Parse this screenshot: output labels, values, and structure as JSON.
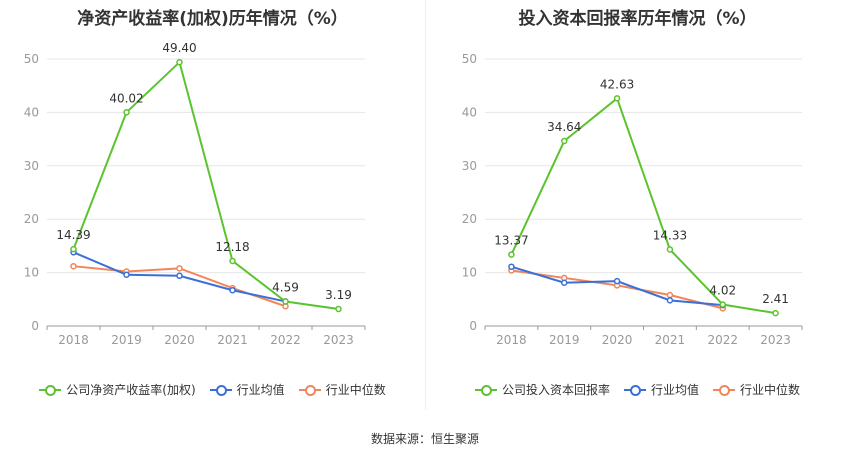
{
  "source_text": "数据来源：恒生聚源",
  "chart_data": [
    {
      "type": "line",
      "title": "净资产收益率(加权)历年情况（%）",
      "x": [
        "2018",
        "2019",
        "2020",
        "2021",
        "2022",
        "2023"
      ],
      "ylim": [
        0,
        50
      ],
      "yticks": [
        0,
        10,
        20,
        30,
        40,
        50
      ],
      "grid": true,
      "legend_position": "bottom",
      "series": [
        {
          "name": "公司净资产收益率(加权)",
          "color": "#5ac42e",
          "values": [
            14.39,
            40.02,
            49.4,
            12.18,
            4.59,
            3.19
          ],
          "labels": [
            "14.39",
            "40.02",
            "49.40",
            "12.18",
            "4.59",
            "3.19"
          ]
        },
        {
          "name": "行业均值",
          "color": "#3a6fd8",
          "values": [
            13.8,
            9.6,
            9.4,
            6.7,
            4.6,
            null
          ]
        },
        {
          "name": "行业中位数",
          "color": "#f0865a",
          "values": [
            11.2,
            10.2,
            10.8,
            7.1,
            3.7,
            null
          ]
        }
      ]
    },
    {
      "type": "line",
      "title": "投入资本回报率历年情况（%）",
      "x": [
        "2018",
        "2019",
        "2020",
        "2021",
        "2022",
        "2023"
      ],
      "ylim": [
        0,
        50
      ],
      "yticks": [
        0,
        10,
        20,
        30,
        40,
        50
      ],
      "grid": true,
      "legend_position": "bottom",
      "series": [
        {
          "name": "公司投入资本回报率",
          "color": "#5ac42e",
          "values": [
            13.37,
            34.64,
            42.63,
            14.33,
            4.02,
            2.41
          ],
          "labels": [
            "13.37",
            "34.64",
            "42.63",
            "14.33",
            "4.02",
            "2.41"
          ]
        },
        {
          "name": "行业均值",
          "color": "#3a6fd8",
          "values": [
            11.1,
            8.1,
            8.4,
            4.8,
            3.9,
            null
          ]
        },
        {
          "name": "行业中位数",
          "color": "#f0865a",
          "values": [
            10.4,
            9.0,
            7.6,
            5.8,
            3.3,
            null
          ]
        }
      ]
    }
  ]
}
